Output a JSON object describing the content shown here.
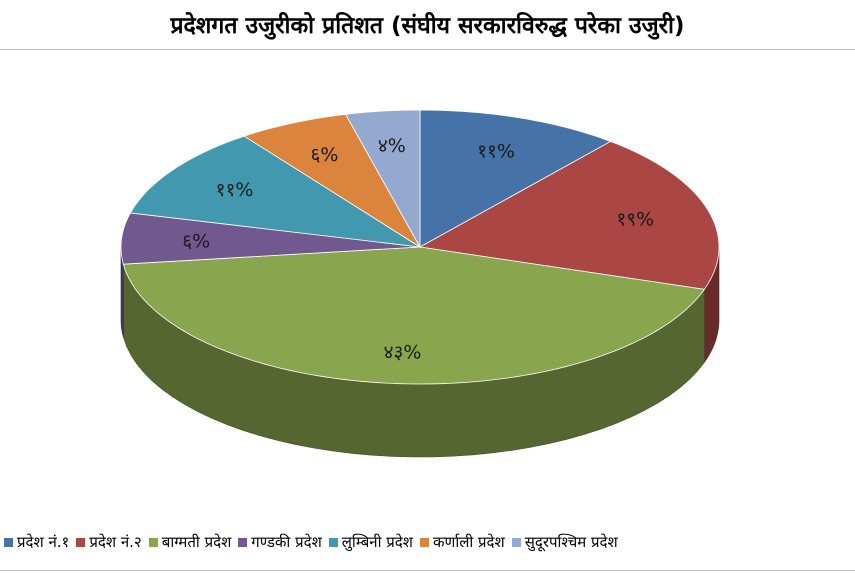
{
  "chart_data": {
    "type": "pie",
    "title": "प्रदेशगत उजुरीको प्रतिशत (संघीय सरकारविरुद्ध परेका उजुरी)",
    "legend_position": "bottom",
    "three_d": true,
    "slices": [
      {
        "name": "प्रदेश नं.१",
        "value": 11,
        "label": "११%",
        "color": "#4572a7"
      },
      {
        "name": "प्रदेश नं.२",
        "value": 19,
        "label": "१९%",
        "color": "#aa4643"
      },
      {
        "name": "बाग्मती प्रदेश",
        "value": 43,
        "label": "४३%",
        "color": "#89a54e"
      },
      {
        "name": "गण्डकी प्रदेश",
        "value": 6,
        "label": "६%",
        "color": "#71588f"
      },
      {
        "name": "लुम्बिनी प्रदेश",
        "value": 11,
        "label": "११%",
        "color": "#4198af"
      },
      {
        "name": "कर्णाली प्रदेश",
        "value": 6,
        "label": "६%",
        "color": "#db843d"
      },
      {
        "name": "सुदूरपश्चिम प्रदेश",
        "value": 4,
        "label": "४%",
        "color": "#93a9cf"
      }
    ]
  }
}
